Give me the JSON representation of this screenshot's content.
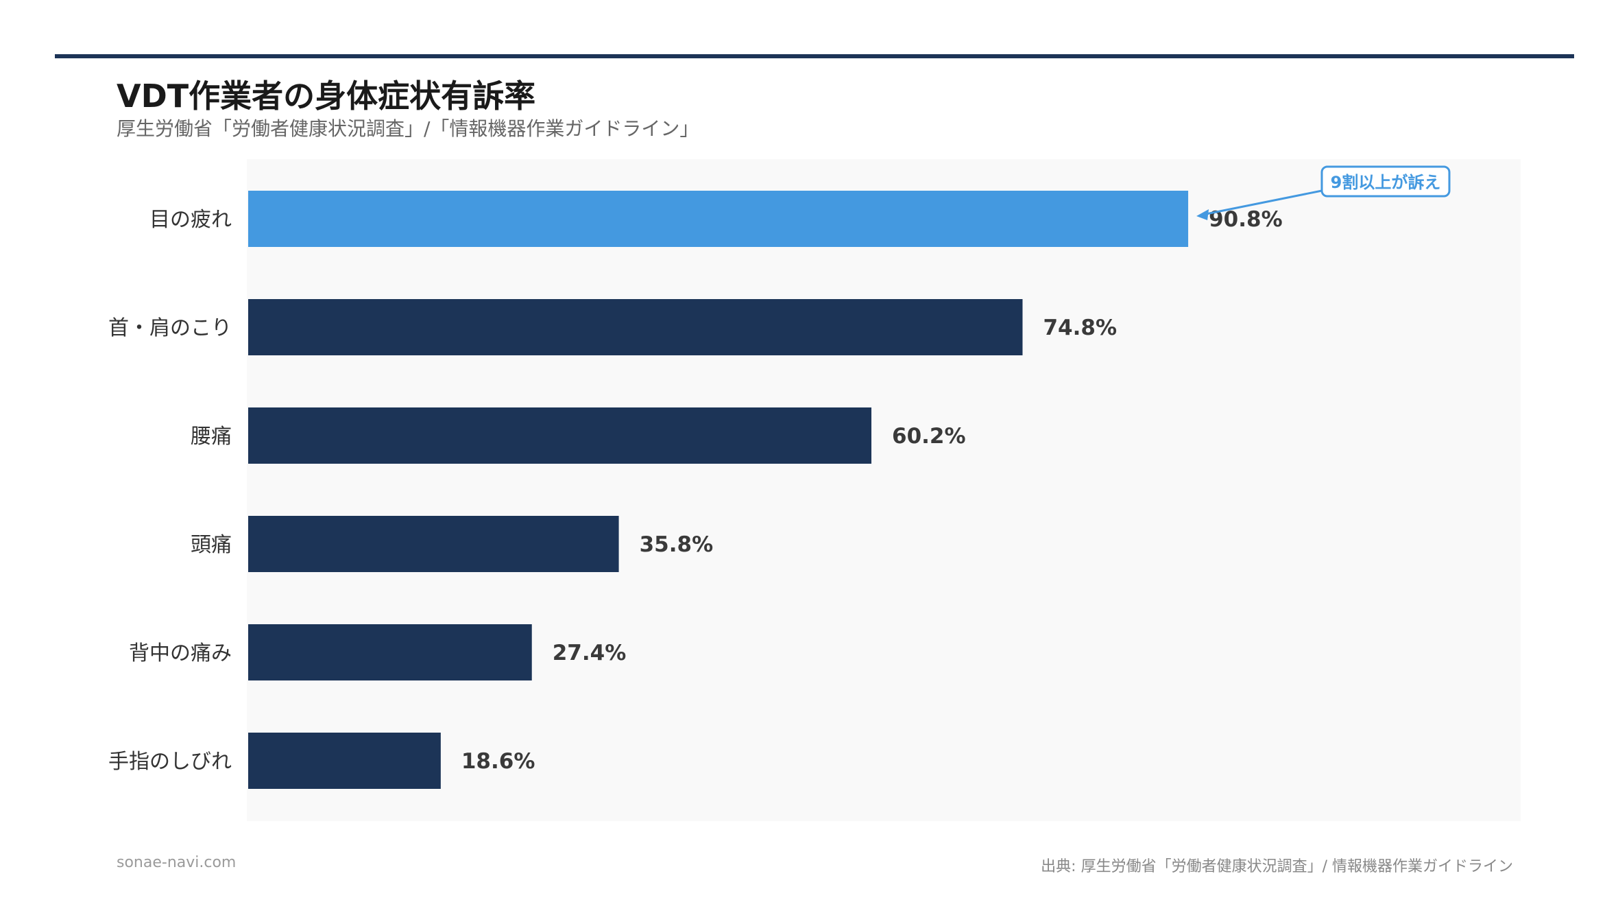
{
  "header": {
    "title": "VDT作業者の身体症状有訴率",
    "subtitle": "厚生労働省「労働者健康状況調査」/「情報機器作業ガイドライン」"
  },
  "footer": {
    "site": "sonae-navi.com",
    "source": "出典: 厚生労働省「労働者健康状況調査」/ 情報機器作業ガイドライン"
  },
  "colors": {
    "highlight": "#4499e0",
    "bar": "#1c3457",
    "plot_bg": "#f9f9f9"
  },
  "chart_data": {
    "type": "bar",
    "orientation": "horizontal",
    "title": "VDT作業者の身体症状有訴率",
    "categories": [
      "目の疲れ",
      "首・肩のこり",
      "腰痛",
      "頭痛",
      "背中の痛み",
      "手指のしびれ"
    ],
    "values": [
      90.8,
      74.8,
      60.2,
      35.8,
      27.4,
      18.6
    ],
    "value_labels": [
      "90.8%",
      "74.8%",
      "60.2%",
      "35.8%",
      "27.4%",
      "18.6%"
    ],
    "unit": "%",
    "xlim": [
      0,
      100
    ],
    "highlight_index": 0,
    "annotation": {
      "text": "9割以上が訴え",
      "target_index": 0
    },
    "grid": false,
    "legend": "none"
  }
}
